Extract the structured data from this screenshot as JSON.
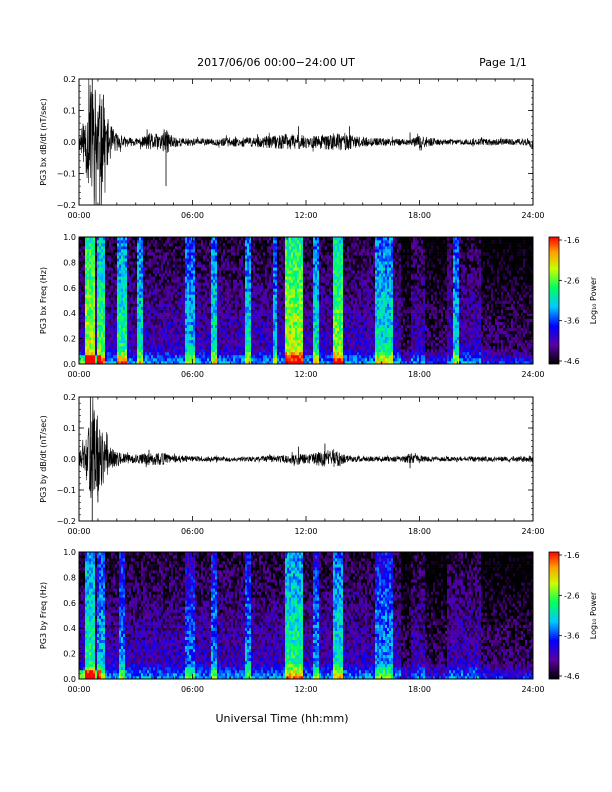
{
  "header": {
    "title": "2017/06/06  00:00−24:00 UT",
    "page": "Page 1/1"
  },
  "xlabel": "Universal Time (hh:mm)",
  "x_ticks": [
    "00:00",
    "06:00",
    "12:00",
    "18:00",
    "24:00"
  ],
  "colorbar": {
    "label": "Log₁₀ Power",
    "ticks": [
      "-1.6",
      "-2.6",
      "-3.6",
      "-4.6"
    ],
    "range": [
      -4.6,
      -1.6
    ]
  },
  "chart_data": [
    {
      "type": "line",
      "ylabel": "PG3 bx dB/dt (nT/sec)",
      "xlim": [
        0,
        24
      ],
      "ylim": [
        -0.2,
        0.2
      ],
      "y_ticks": [
        "0.2",
        "0.1",
        "0.0",
        "−0.1",
        "−0.2"
      ],
      "envelope": {
        "x": [
          0,
          0.3,
          0.5,
          0.8,
          1.0,
          1.3,
          1.6,
          2.0,
          2.5,
          3.0,
          3.5,
          3.8,
          4.2,
          4.6,
          5.0,
          5.5,
          6.0,
          7.0,
          8.0,
          9.0,
          10.0,
          11.0,
          11.5,
          12.0,
          12.5,
          13.0,
          13.5,
          14.0,
          14.5,
          15.0,
          16.0,
          17.0,
          17.5,
          18.0,
          19.0,
          20.0,
          21.0,
          22.0,
          23.0,
          23.8,
          24.0
        ],
        "amp": [
          0.02,
          0.08,
          0.15,
          0.2,
          0.18,
          0.12,
          0.06,
          0.03,
          0.015,
          0.012,
          0.02,
          0.03,
          0.025,
          0.04,
          0.02,
          0.012,
          0.012,
          0.01,
          0.015,
          0.015,
          0.02,
          0.025,
          0.025,
          0.02,
          0.02,
          0.025,
          0.025,
          0.03,
          0.02,
          0.015,
          0.012,
          0.012,
          0.01,
          0.02,
          0.01,
          0.008,
          0.01,
          0.01,
          0.01,
          0.012,
          0.025
        ]
      },
      "spikes": [
        {
          "x": 0.7,
          "y": 0.2
        },
        {
          "x": 0.9,
          "y": -0.2
        },
        {
          "x": 1.1,
          "y": -0.2
        },
        {
          "x": 1.3,
          "y": 0.15
        },
        {
          "x": 3.6,
          "y": 0.04
        },
        {
          "x": 4.5,
          "y": 0.04
        },
        {
          "x": 4.6,
          "y": -0.14
        },
        {
          "x": 11.6,
          "y": 0.05
        },
        {
          "x": 14.3,
          "y": 0.05
        },
        {
          "x": 17.5,
          "y": 0.03
        },
        {
          "x": 24.0,
          "y": -0.05
        }
      ]
    },
    {
      "type": "heatmap",
      "ylabel": "PG3 bx Freq (Hz)",
      "xlim": [
        0,
        24
      ],
      "ylim": [
        0,
        1.0
      ],
      "y_ticks": [
        "1.0",
        "0.8",
        "0.6",
        "0.4",
        "0.2",
        "0.0"
      ],
      "z_unit": "Log10 Power",
      "bright_bands": [
        {
          "x": [
            0.3,
            0.8
          ],
          "level": 0.75
        },
        {
          "x": [
            1.0,
            1.4
          ],
          "level": 0.65
        },
        {
          "x": [
            2.0,
            2.5
          ],
          "level": 0.6
        },
        {
          "x": [
            3.1,
            3.4
          ],
          "level": 0.55
        },
        {
          "x": [
            5.6,
            6.1
          ],
          "level": 0.5
        },
        {
          "x": [
            7.0,
            7.3
          ],
          "level": 0.55
        },
        {
          "x": [
            8.8,
            9.1
          ],
          "level": 0.55
        },
        {
          "x": [
            10.3,
            10.5
          ],
          "level": 0.5
        },
        {
          "x": [
            10.9,
            11.8
          ],
          "level": 0.75
        },
        {
          "x": [
            12.4,
            12.7
          ],
          "level": 0.55
        },
        {
          "x": [
            13.4,
            14.0
          ],
          "level": 0.7
        },
        {
          "x": [
            15.6,
            16.6
          ],
          "level": 0.55
        },
        {
          "x": [
            19.8,
            20.1
          ],
          "level": 0.5
        }
      ],
      "dark_bands": [
        [
          17.0,
          17.6
        ],
        [
          18.3,
          19.5
        ],
        [
          21.3,
          24.0
        ]
      ]
    },
    {
      "type": "line",
      "ylabel": "PG3 by dB/dt (nT/sec)",
      "xlim": [
        0,
        24
      ],
      "ylim": [
        -0.2,
        0.2
      ],
      "y_ticks": [
        "0.2",
        "0.1",
        "0.0",
        "−0.1",
        "−0.2"
      ],
      "envelope": {
        "x": [
          0,
          0.3,
          0.6,
          0.8,
          1.0,
          1.3,
          1.6,
          2.0,
          2.5,
          3.0,
          3.5,
          4.0,
          4.5,
          5.0,
          6.0,
          7.0,
          8.0,
          9.0,
          10.0,
          11.0,
          11.5,
          12.0,
          12.5,
          13.0,
          13.5,
          14.0,
          14.5,
          15.0,
          16.0,
          17.0,
          17.5,
          18.0,
          19.0,
          20.0,
          21.0,
          22.0,
          23.0,
          23.8,
          24.0
        ],
        "amp": [
          0.02,
          0.05,
          0.12,
          0.17,
          0.14,
          0.08,
          0.04,
          0.025,
          0.015,
          0.015,
          0.02,
          0.02,
          0.02,
          0.012,
          0.01,
          0.008,
          0.008,
          0.008,
          0.01,
          0.012,
          0.02,
          0.015,
          0.02,
          0.03,
          0.03,
          0.015,
          0.01,
          0.008,
          0.008,
          0.008,
          0.015,
          0.01,
          0.008,
          0.008,
          0.008,
          0.008,
          0.008,
          0.01,
          0.015
        ]
      },
      "spikes": [
        {
          "x": 0.6,
          "y": 0.2
        },
        {
          "x": 0.8,
          "y": 0.15
        },
        {
          "x": 0.7,
          "y": -0.2
        },
        {
          "x": 1.0,
          "y": -0.14
        },
        {
          "x": 3.7,
          "y": 0.03
        },
        {
          "x": 11.6,
          "y": 0.04
        },
        {
          "x": 13.0,
          "y": 0.05
        },
        {
          "x": 17.5,
          "y": -0.03
        }
      ]
    },
    {
      "type": "heatmap",
      "ylabel": "PG3 by Freq (Hz)",
      "xlim": [
        0,
        24
      ],
      "ylim": [
        0,
        1.0
      ],
      "y_ticks": [
        "1.0",
        "0.8",
        "0.6",
        "0.4",
        "0.2",
        "0.0"
      ],
      "z_unit": "Log10 Power",
      "bright_bands": [
        {
          "x": [
            0.3,
            0.8
          ],
          "level": 0.6
        },
        {
          "x": [
            1.0,
            1.4
          ],
          "level": 0.5
        },
        {
          "x": [
            2.1,
            2.4
          ],
          "level": 0.45
        },
        {
          "x": [
            5.6,
            6.1
          ],
          "level": 0.4
        },
        {
          "x": [
            7.0,
            7.3
          ],
          "level": 0.45
        },
        {
          "x": [
            8.8,
            9.1
          ],
          "level": 0.45
        },
        {
          "x": [
            10.9,
            11.8
          ],
          "level": 0.6
        },
        {
          "x": [
            12.4,
            12.7
          ],
          "level": 0.45
        },
        {
          "x": [
            13.4,
            14.0
          ],
          "level": 0.55
        },
        {
          "x": [
            15.6,
            16.6
          ],
          "level": 0.45
        }
      ],
      "dark_bands": [
        [
          17.0,
          17.6
        ],
        [
          18.3,
          19.5
        ],
        [
          21.3,
          24.0
        ]
      ]
    }
  ]
}
